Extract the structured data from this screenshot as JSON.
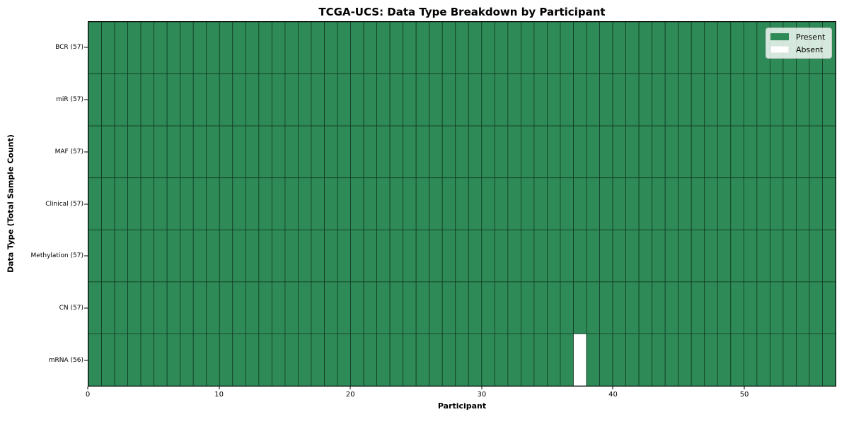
{
  "chart_data": {
    "type": "heatmap",
    "title": "TCGA-UCS: Data Type Breakdown by Participant",
    "xlabel": "Participant",
    "ylabel": "Data Type (Total Sample Count)",
    "n_participants": 57,
    "x_ticks": [
      0,
      10,
      20,
      30,
      40,
      50
    ],
    "x_range": [
      0,
      57
    ],
    "grid": "cell-edges",
    "rows": [
      {
        "label": "BCR (57)",
        "absent_participants": []
      },
      {
        "label": "miR (57)",
        "absent_participants": []
      },
      {
        "label": "MAF (57)",
        "absent_participants": []
      },
      {
        "label": "Clinical (57)",
        "absent_participants": []
      },
      {
        "label": "Methylation (57)",
        "absent_participants": []
      },
      {
        "label": "CN (57)",
        "absent_participants": []
      },
      {
        "label": "mRNA (56)",
        "absent_participants": [
          37
        ]
      }
    ],
    "legend": {
      "position": "upper right",
      "entries": [
        {
          "label": "Present",
          "color": "#2e8b57"
        },
        {
          "label": "Absent",
          "color": "#ffffff"
        }
      ]
    },
    "colors": {
      "present": "#2e8b57",
      "absent": "#ffffff",
      "cell_edge": "#123823",
      "spine": "#000000"
    }
  }
}
